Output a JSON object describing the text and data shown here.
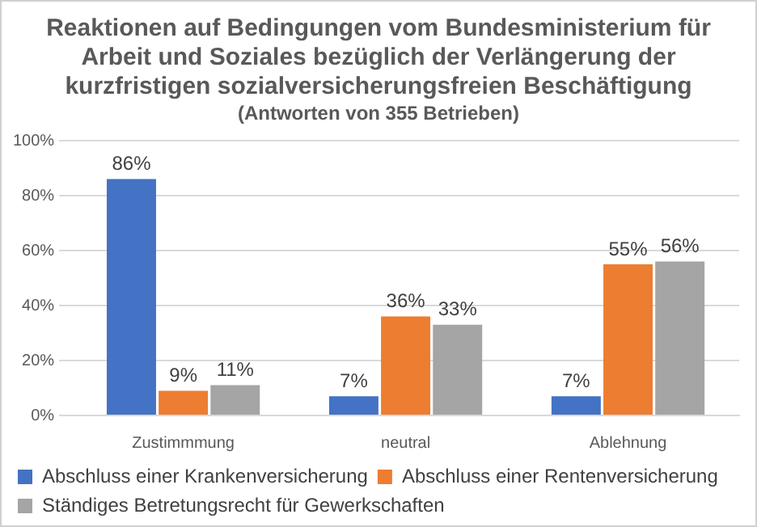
{
  "chart_data": {
    "type": "bar",
    "title": "Reaktionen auf Bedingungen vom Bundesministerium für Arbeit und Soziales bezüglich der Verlängerung der kurzfristigen sozialversicherungsfreien Beschäftigung",
    "subtitle": "(Antworten von  355 Betrieben)",
    "categories": [
      "Zustimmmung",
      "neutral",
      "Ablehnung"
    ],
    "series": [
      {
        "name": "Abschluss einer Krankenversicherung",
        "color": "#4472c4",
        "values": [
          86,
          7,
          7
        ],
        "value_labels": [
          "86%",
          "7%",
          "7%"
        ]
      },
      {
        "name": "Abschluss einer Rentenversicherung",
        "color": "#ed7d31",
        "values": [
          9,
          36,
          55
        ],
        "value_labels": [
          "9%",
          "36%",
          "55%"
        ]
      },
      {
        "name": "Ständiges Betretungsrecht für Gewerkschaften",
        "color": "#a5a5a5",
        "values": [
          11,
          33,
          56
        ],
        "value_labels": [
          "11%",
          "33%",
          "56%"
        ]
      }
    ],
    "ylim": [
      0,
      100
    ],
    "yticks": [
      {
        "value": 0,
        "label": "0%"
      },
      {
        "value": 20,
        "label": "20%"
      },
      {
        "value": 40,
        "label": "40%"
      },
      {
        "value": 60,
        "label": "60%"
      },
      {
        "value": 80,
        "label": "80%"
      },
      {
        "value": 100,
        "label": "100%"
      }
    ],
    "grid": "y",
    "legend": "bottom"
  }
}
